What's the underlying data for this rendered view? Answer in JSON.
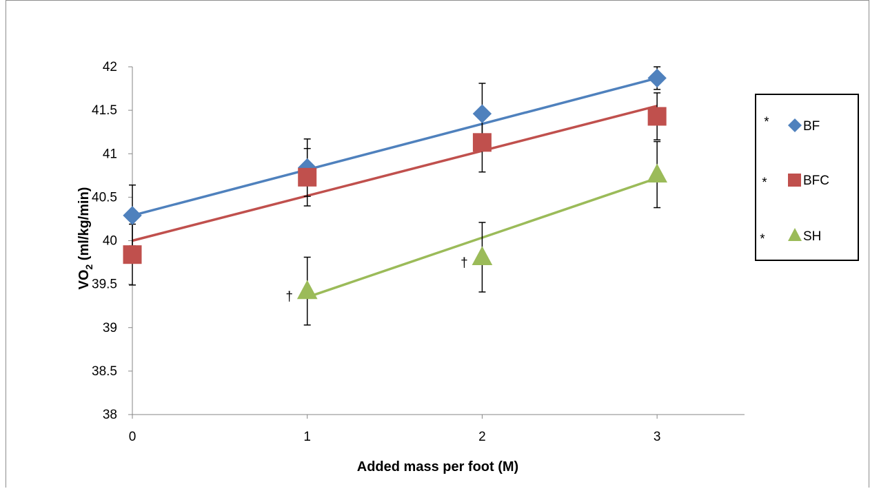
{
  "chart_data": {
    "type": "scatter",
    "xlabel": "Added mass per foot (M)",
    "ylabel_main": "VO",
    "ylabel_sub": "2",
    "ylabel_rest": " (ml/kg/min)",
    "xlim": [
      0,
      3.5
    ],
    "ylim": [
      38,
      42
    ],
    "x_ticks": [
      "0",
      "1",
      "2",
      "3"
    ],
    "x_tick_values": [
      0,
      1,
      2,
      3
    ],
    "y_ticks": [
      "38",
      "38.5",
      "39",
      "39.5",
      "40",
      "40.5",
      "41",
      "41.5",
      "42"
    ],
    "y_tick_values": [
      38,
      38.5,
      39,
      39.5,
      40,
      40.5,
      41,
      41.5,
      42
    ],
    "grid": false,
    "legend_placement": "right",
    "series": [
      {
        "name": "BF",
        "marker": "diamond",
        "color": "#4f81bd",
        "trend_color": "#4f81bd",
        "x": [
          0,
          1,
          2,
          3
        ],
        "y": [
          40.29,
          40.84,
          41.46,
          41.87
        ],
        "err": [
          0.35,
          0.33,
          0.35,
          0.13
        ],
        "trend": [
          40.29,
          41.87
        ],
        "legend_mark": "*",
        "annotations": []
      },
      {
        "name": "BFC",
        "marker": "square",
        "color": "#c0504d",
        "trend_color": "#c0504d",
        "x": [
          0,
          1,
          2,
          3
        ],
        "y": [
          39.84,
          40.73,
          41.13,
          41.43
        ],
        "err": [
          0.35,
          0.33,
          0.34,
          0.27
        ],
        "trend": [
          40.0,
          41.55
        ],
        "legend_mark": "*",
        "annotations": []
      },
      {
        "name": "SH",
        "marker": "triangle",
        "color": "#9bbb59",
        "trend_color": "#9bbb59",
        "x": [
          1,
          2,
          3
        ],
        "y": [
          39.42,
          39.81,
          40.76
        ],
        "err": [
          0.39,
          0.4,
          0.38
        ],
        "trend": [
          39.35,
          40.72
        ],
        "legend_mark": "*",
        "annotations": [
          {
            "x": 1,
            "y": 39.42,
            "text": "†"
          },
          {
            "x": 2,
            "y": 39.81,
            "text": "†"
          }
        ]
      }
    ]
  }
}
